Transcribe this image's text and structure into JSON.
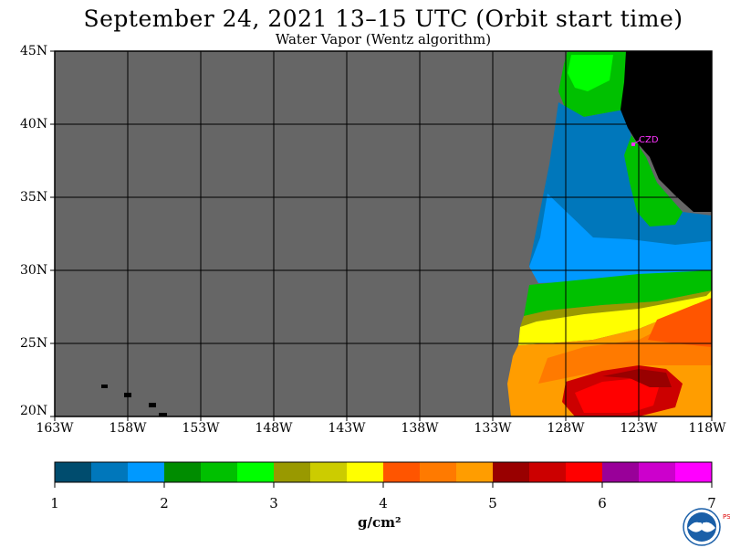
{
  "header": {
    "title": "September 24, 2021  13–15 UTC  (Orbit start time)",
    "subtitle": "Water Vapor (Wentz algorithm)"
  },
  "map": {
    "lat_labels": [
      "45N",
      "40N",
      "35N",
      "30N",
      "25N",
      "20N"
    ],
    "lon_labels": [
      "163W",
      "158W",
      "153W",
      "148W",
      "143W",
      "138W",
      "133W",
      "128W",
      "123W",
      "118W"
    ],
    "station_label": "CZD",
    "station_color": "#ff33ff",
    "nodata_color": "#666666",
    "land_color": "#000000",
    "grid_color": "#000000"
  },
  "colorbar": {
    "colors": [
      "#004c6e",
      "#0077bb",
      "#0099ff",
      "#008c00",
      "#00c000",
      "#00ff00",
      "#999900",
      "#cccc00",
      "#ffff00",
      "#ff5500",
      "#ff7a00",
      "#ff9d00",
      "#990000",
      "#cc0000",
      "#ff0000",
      "#990099",
      "#cc00cc",
      "#ff00ff"
    ],
    "ticks": [
      "1",
      "2",
      "3",
      "4",
      "5",
      "6",
      "7"
    ],
    "units": "g/cm²"
  },
  "logo": {
    "name": "noaa-logo",
    "text": "NOAA",
    "side_text": "PSL"
  }
}
